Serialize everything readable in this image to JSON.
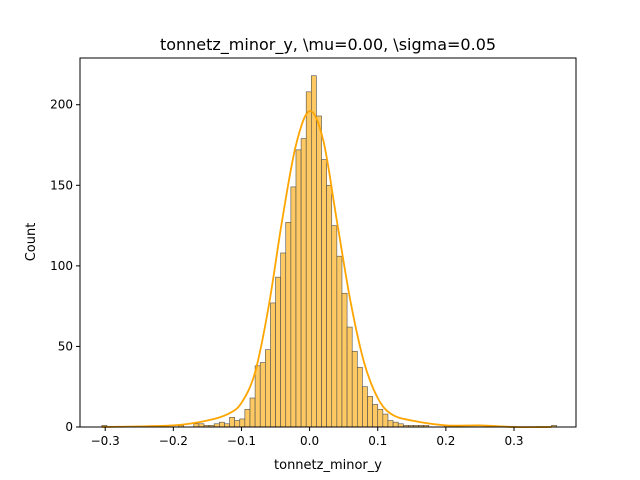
{
  "chart_data": {
    "type": "bar",
    "subtype": "histogram-with-kde",
    "title": "tonnetz_minor_y, \\mu=0.00, \\sigma=0.05",
    "xlabel": "tonnetz_minor_y",
    "ylabel": "Count",
    "xlim": [
      -0.337,
      0.391
    ],
    "ylim": [
      0,
      229
    ],
    "xticks": [
      -0.3,
      -0.2,
      -0.1,
      0.0,
      0.1,
      0.2,
      0.3
    ],
    "xtick_labels": [
      "−0.3",
      "−0.2",
      "−0.1",
      "0.0",
      "0.1",
      "0.2",
      "0.3"
    ],
    "yticks": [
      0,
      50,
      100,
      150,
      200
    ],
    "ytick_labels": [
      "0",
      "50",
      "100",
      "150",
      "200"
    ],
    "bin_start": -0.305,
    "bin_width": 0.0075,
    "counts": [
      1,
      0,
      0,
      0,
      0,
      0,
      0,
      0,
      0,
      0,
      0,
      0,
      0,
      0,
      0,
      1,
      0,
      0,
      2,
      2,
      1,
      1,
      2,
      3,
      2,
      6,
      4,
      5,
      11,
      18,
      38,
      40,
      48,
      77,
      93,
      108,
      127,
      149,
      172,
      179,
      208,
      218,
      193,
      166,
      150,
      125,
      106,
      83,
      62,
      47,
      37,
      25,
      19,
      14,
      11,
      8,
      4,
      3,
      2,
      1,
      1,
      1,
      1,
      1,
      0,
      0,
      0,
      1,
      0,
      0,
      0,
      0,
      0,
      0,
      0,
      0,
      0,
      0,
      0,
      0,
      0,
      0,
      0,
      0,
      0,
      0,
      0,
      0,
      1
    ],
    "kde": {
      "x": [
        -0.305,
        -0.2,
        -0.15,
        -0.12,
        -0.1,
        -0.08,
        -0.06,
        -0.04,
        -0.02,
        0.0,
        0.02,
        0.04,
        0.06,
        0.08,
        0.1,
        0.12,
        0.15,
        0.2,
        0.25,
        0.3,
        0.355
      ],
      "y": [
        0,
        1,
        4,
        8,
        15,
        34,
        75,
        129,
        175,
        196,
        178,
        128,
        78,
        40,
        18,
        8,
        4,
        1,
        1,
        0,
        0
      ]
    },
    "colors": {
      "bar_fill": "#fec963",
      "bar_edge": "#4d4d4d",
      "kde_line": "#ffa500",
      "axes": "#000000"
    },
    "grid": false,
    "legend": "none"
  }
}
